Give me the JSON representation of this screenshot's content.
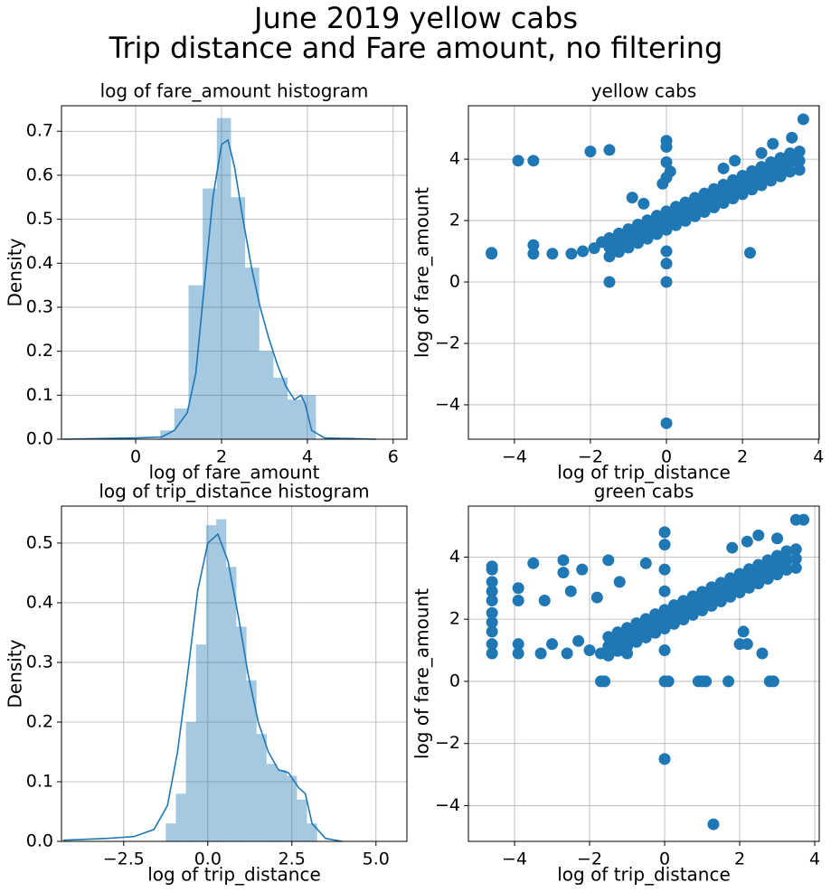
{
  "suptitle": [
    "June 2019 yellow cabs",
    "Trip distance and Fare amount, no filtering"
  ],
  "chart_data": [
    {
      "type": "histogram",
      "title": "log of fare_amount histogram",
      "xlabel": "log of fare_amount",
      "ylabel": "Density",
      "bins": [
        0.57,
        0.9,
        1.23,
        1.56,
        1.89,
        2.22,
        2.55,
        2.88,
        3.21,
        3.54,
        3.87,
        4.2
      ],
      "values": [
        0.02,
        0.07,
        0.35,
        0.57,
        0.73,
        0.55,
        0.39,
        0.2,
        0.14,
        0.09,
        0.1
      ],
      "color": "#1f77b4",
      "alpha": 0.4,
      "kde": {
        "x": [
          -1.7,
          0,
          0.6,
          0.9,
          1.2,
          1.4,
          1.6,
          1.8,
          2.0,
          2.15,
          2.3,
          2.5,
          2.7,
          2.9,
          3.1,
          3.3,
          3.5,
          3.7,
          3.85,
          3.95,
          4.1,
          4.4,
          5.6
        ],
        "values": [
          0,
          0.003,
          0.005,
          0.02,
          0.06,
          0.15,
          0.35,
          0.55,
          0.67,
          0.68,
          0.62,
          0.5,
          0.39,
          0.3,
          0.23,
          0.17,
          0.12,
          0.09,
          0.1,
          0.08,
          0.02,
          0.003,
          0
        ],
        "color": "#1f77b4"
      },
      "xlim": [
        -1.73,
        6.32
      ],
      "ylim": [
        0,
        0.758
      ],
      "xticks": [
        0,
        2,
        4,
        6
      ],
      "yticks": [
        {
          "value": 0,
          "label": "0.0"
        },
        0.1,
        0.2,
        0.3,
        0.4,
        0.5,
        0.6,
        0.7
      ],
      "grid": true
    },
    {
      "type": "scatter",
      "title": "yellow cabs",
      "xlabel": "log of trip_distance",
      "ylabel": "log of fare_amount",
      "color": "#1f77b4",
      "x": [
        -4.6,
        -4.6,
        -3.5,
        -3.5,
        -3.9,
        -3.5,
        -3,
        -2.5,
        -2.2,
        -2,
        -1.5,
        -1.9,
        -1.7,
        -1.5,
        -1.3,
        -0.9,
        -0.6,
        0,
        0,
        0,
        0,
        0,
        0,
        0,
        0,
        0.1,
        -0.1,
        2.2,
        2.8,
        3.3,
        3.6,
        2.5,
        3.4,
        3.0,
        1.8,
        1.5,
        -1.5,
        -1.25,
        -1,
        -0.75,
        -0.5,
        -0.25,
        0,
        0.25,
        0.5,
        0.75,
        1,
        1.25,
        1.5,
        1.75,
        2,
        2.25,
        2.5,
        2.75,
        3,
        3.25,
        3.5,
        -1.5,
        -1.25,
        -1,
        -0.75,
        -0.5,
        -0.25,
        0,
        0.25,
        0.5,
        0.75,
        1,
        1.25,
        1.5,
        1.75,
        2,
        2.25,
        2.5,
        2.75,
        3,
        3.25,
        3.5,
        -1.5,
        -1.25,
        -1,
        -0.75,
        -0.5,
        -0.25,
        0,
        0.25,
        0.5,
        0.75,
        1,
        1.25,
        1.5,
        1.75,
        2,
        2.25,
        2.5,
        2.75,
        3,
        3.25,
        3.5
      ],
      "values": [
        0.92,
        0.95,
        0.92,
        1.2,
        3.95,
        3.95,
        0.92,
        0.92,
        1.0,
        4.25,
        4.3,
        1.1,
        1.3,
        0,
        1.0,
        2.75,
        2.55,
        -4.6,
        0,
        0.6,
        1.0,
        4.6,
        4.4,
        3.9,
        3.4,
        3.6,
        3.2,
        0.95,
        4.5,
        4.7,
        5.3,
        4.2,
        3.95,
        3.95,
        3.95,
        3.7,
        1.13,
        1.28,
        1.42,
        1.57,
        1.71,
        1.86,
        2.0,
        2.15,
        2.29,
        2.44,
        2.58,
        2.73,
        2.87,
        3.02,
        3.16,
        3.31,
        3.45,
        3.6,
        3.74,
        3.89,
        3.95,
        1.43,
        1.58,
        1.72,
        1.87,
        2.01,
        2.16,
        2.3,
        2.45,
        2.59,
        2.74,
        2.88,
        3.03,
        3.17,
        3.32,
        3.46,
        3.61,
        3.75,
        3.9,
        4.04,
        4.19,
        4.25,
        0.83,
        0.98,
        1.12,
        1.27,
        1.41,
        1.56,
        1.7,
        1.85,
        1.99,
        2.14,
        2.28,
        2.43,
        2.57,
        2.72,
        2.86,
        3.01,
        3.15,
        3.3,
        3.44,
        3.59,
        3.65
      ],
      "xlim": [
        -5.21,
        4.02
      ],
      "ylim": [
        -5.12,
        5.74
      ],
      "xticks": [
        {
          "value": -4,
          "label": "−4"
        },
        {
          "value": -2,
          "label": "−2"
        },
        0,
        2,
        4
      ],
      "yticks": [
        {
          "value": -4,
          "label": "−4"
        },
        {
          "value": -2,
          "label": "−2"
        },
        0,
        2,
        4
      ],
      "grid": true
    },
    {
      "type": "histogram",
      "title": "log of trip_distance histogram",
      "xlabel": "log of trip_distance",
      "ylabel": "Density",
      "bins": [
        -1.25,
        -0.95,
        -0.65,
        -0.35,
        -0.05,
        0.25,
        0.55,
        0.85,
        1.15,
        1.45,
        1.75,
        2.05,
        2.35,
        2.65,
        2.95,
        3.25
      ],
      "values": [
        0.03,
        0.08,
        0.2,
        0.33,
        0.53,
        0.54,
        0.46,
        0.36,
        0.27,
        0.18,
        0.13,
        0.12,
        0.11,
        0.07,
        0.03
      ],
      "color": "#1f77b4",
      "alpha": 0.4,
      "kde": {
        "x": [
          -4.3,
          -3,
          -2.2,
          -1.6,
          -1.2,
          -0.9,
          -0.6,
          -0.3,
          0,
          0.3,
          0.6,
          0.9,
          1.2,
          1.5,
          1.8,
          2.1,
          2.4,
          2.7,
          2.9,
          3.1,
          3.5,
          4.0
        ],
        "values": [
          0.002,
          0.005,
          0.008,
          0.02,
          0.06,
          0.15,
          0.28,
          0.42,
          0.5,
          0.515,
          0.47,
          0.38,
          0.28,
          0.2,
          0.15,
          0.12,
          0.115,
          0.09,
          0.08,
          0.03,
          0.005,
          0
        ],
        "color": "#1f77b4"
      },
      "xlim": [
        -4.35,
        5.92
      ],
      "ylim": [
        0,
        0.562
      ],
      "xticks": [
        {
          "value": -2.5,
          "label": "−2.5"
        },
        {
          "value": 0,
          "label": "0.0"
        },
        2.5,
        {
          "value": 5,
          "label": "5.0"
        }
      ],
      "yticks": [
        {
          "value": 0,
          "label": "0.0"
        },
        0.1,
        0.2,
        0.3,
        0.4,
        0.5
      ],
      "grid": true
    },
    {
      "type": "scatter",
      "title": "green cabs",
      "xlabel": "log of trip_distance",
      "ylabel": "log of fare_amount",
      "color": "#1f77b4",
      "x": [
        -4.6,
        -4.6,
        -4.6,
        -4.6,
        -4.6,
        -4.6,
        -4.6,
        -4.6,
        -4.6,
        -4.6,
        -3.9,
        -3.9,
        -3.9,
        -3.9,
        -3.5,
        -3.3,
        -3.2,
        -2.7,
        -2.7,
        -2.5,
        -2.2,
        -2.6,
        -2.3,
        -1.5,
        -1.2,
        -1.8,
        -1.7,
        -0.5,
        0,
        0,
        0,
        0,
        0,
        0,
        0.1,
        0,
        1.3,
        -1.7,
        -1.6,
        0.9,
        1.0,
        1.1,
        1.7,
        2.8,
        2.9,
        2.6,
        2.0,
        2.2,
        2.1,
        3.7,
        3.5,
        2.5,
        2.2,
        1.8,
        3.0,
        -2.0,
        -1.0,
        -3.0,
        -1.5,
        -1.25,
        -1,
        -0.75,
        -0.5,
        -0.25,
        0,
        0.25,
        0.5,
        0.75,
        1,
        1.25,
        1.5,
        1.75,
        2,
        2.25,
        2.5,
        2.75,
        3,
        3.25,
        3.5,
        -1.5,
        -1.25,
        -1,
        -0.75,
        -0.5,
        -0.25,
        0,
        0.25,
        0.5,
        0.75,
        1,
        1.25,
        1.5,
        1.75,
        2,
        2.25,
        2.5,
        2.75,
        3,
        3.25,
        3.5,
        -1.5,
        -1.25,
        -1,
        -0.75,
        -0.5,
        -0.25,
        0,
        0.25,
        0.5,
        0.75,
        1,
        1.25,
        1.5,
        1.75,
        2,
        2.25,
        2.5,
        2.75,
        3,
        3.25,
        3.5
      ],
      "values": [
        0.9,
        1.2,
        1.6,
        1.9,
        2.2,
        2.6,
        2.9,
        3.2,
        3.6,
        3.7,
        0.9,
        1.2,
        2.6,
        3.0,
        3.8,
        0.9,
        2.6,
        3.9,
        3.5,
        2.9,
        3.6,
        0.9,
        1.3,
        3.9,
        3.2,
        2.7,
        0.9,
        3.8,
        4.8,
        4.4,
        3.6,
        2.9,
        1.0,
        0,
        0,
        -2.5,
        -4.6,
        0,
        0,
        0,
        0,
        0,
        0,
        0,
        0,
        0.9,
        1.2,
        1.2,
        1.6,
        5.2,
        5.2,
        4.7,
        4.5,
        4.3,
        4.6,
        1.0,
        0.9,
        1.2,
        1.13,
        1.28,
        1.42,
        1.57,
        1.71,
        1.86,
        2.0,
        2.15,
        2.29,
        2.44,
        2.58,
        2.73,
        2.87,
        3.02,
        3.16,
        3.31,
        3.45,
        3.6,
        3.74,
        3.89,
        3.95,
        1.43,
        1.58,
        1.72,
        1.87,
        2.01,
        2.16,
        2.3,
        2.45,
        2.59,
        2.74,
        2.88,
        3.03,
        3.17,
        3.32,
        3.46,
        3.61,
        3.75,
        3.9,
        4.04,
        4.19,
        4.25,
        0.83,
        0.98,
        1.12,
        1.27,
        1.41,
        1.56,
        1.7,
        1.85,
        1.99,
        2.14,
        2.28,
        2.43,
        2.57,
        2.72,
        2.86,
        3.01,
        3.15,
        3.3,
        3.44,
        3.59,
        3.65
      ],
      "xlim": [
        -5.23,
        4.12
      ],
      "ylim": [
        -5.15,
        5.64
      ],
      "xticks": [
        {
          "value": -4,
          "label": "−4"
        },
        {
          "value": -2,
          "label": "−2"
        },
        0,
        2,
        4
      ],
      "yticks": [
        {
          "value": -4,
          "label": "−4"
        },
        {
          "value": -2,
          "label": "−2"
        },
        0,
        2,
        4
      ],
      "grid": true
    }
  ]
}
